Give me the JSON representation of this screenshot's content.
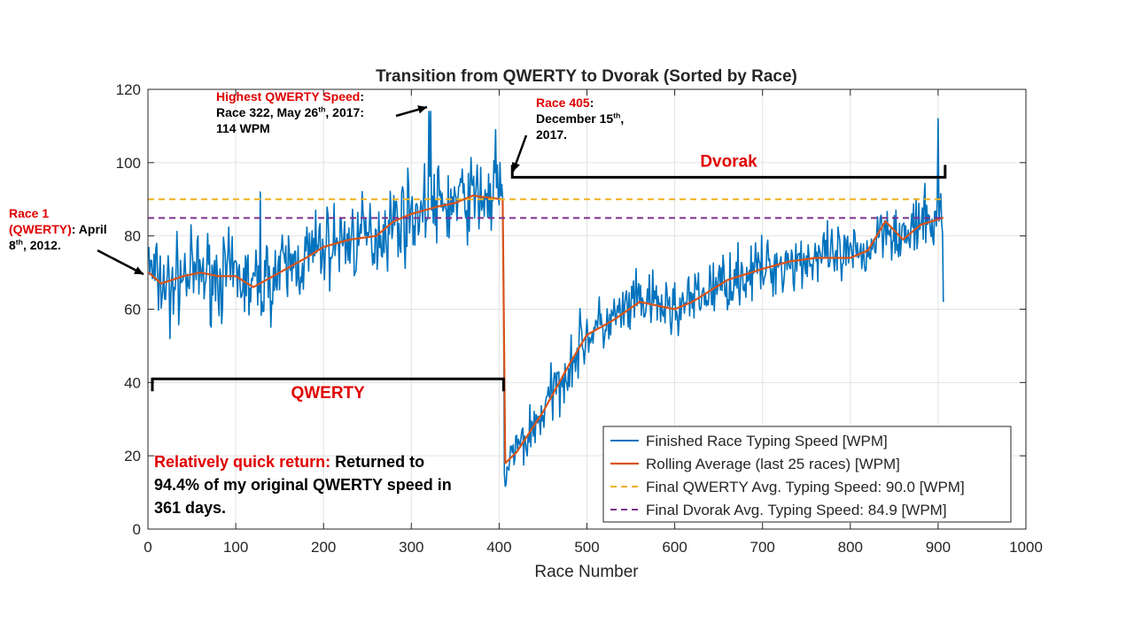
{
  "chart_data": {
    "type": "line",
    "title": "Transition from QWERTY to Dvorak (Sorted by Race)",
    "xlabel": "Race Number",
    "ylabel": "",
    "xlim": [
      0,
      1000
    ],
    "ylim": [
      0,
      120
    ],
    "xticks": [
      0,
      100,
      200,
      300,
      400,
      500,
      600,
      700,
      800,
      900,
      1000
    ],
    "yticks": [
      0,
      20,
      40,
      60,
      80,
      100,
      120
    ],
    "grid": true,
    "legend_position": "bottom-right",
    "colors": {
      "race": "#0072BD",
      "rolling": "#D95319",
      "qwerty_avg": "#EDB120",
      "dvorak_avg": "#7E2F8E",
      "annotation_red": "#E00000"
    },
    "series": [
      {
        "name": "Finished Race Typing Speed [WPM]",
        "style": "solid",
        "note": "Noisy per-race values (approx. +/-12 WPM around the rolling average); notable points listed",
        "points": [
          [
            1,
            77
          ],
          [
            25,
            52
          ],
          [
            128,
            92
          ],
          [
            320,
            114
          ],
          [
            322,
            114
          ],
          [
            396,
            109
          ],
          [
            404,
            90
          ],
          [
            406,
            15
          ],
          [
            409,
            17
          ],
          [
            900,
            112
          ],
          [
            906,
            62
          ]
        ]
      },
      {
        "name": "Rolling Average (last 25 races) [WPM]",
        "style": "solid",
        "x": [
          1,
          15,
          40,
          60,
          80,
          100,
          120,
          150,
          180,
          200,
          230,
          260,
          280,
          300,
          330,
          350,
          370,
          404,
          407,
          420,
          450,
          480,
          500,
          530,
          560,
          580,
          600,
          620,
          660,
          700,
          730,
          760,
          800,
          820,
          840,
          860,
          880,
          906
        ],
        "values": [
          70,
          67,
          69,
          70,
          69,
          69,
          66,
          70,
          74,
          77,
          79,
          80,
          84,
          86,
          88,
          89,
          91,
          90,
          18,
          21,
          32,
          45,
          53,
          57,
          62,
          61,
          60,
          62,
          68,
          71,
          73,
          74,
          74,
          76,
          84,
          79,
          83,
          85
        ]
      },
      {
        "name": "Final QWERTY Avg. Typing Speed: 90.0 [WPM]",
        "style": "dashed",
        "x": [
          0,
          906
        ],
        "values": [
          90.0,
          90.0
        ]
      },
      {
        "name": "Final Dvorak Avg. Typing Speed: 84.9 [WPM]",
        "style": "dashed",
        "x": [
          0,
          906
        ],
        "values": [
          84.9,
          84.9
        ]
      }
    ],
    "brackets": [
      {
        "label": "QWERTY",
        "x_from": 5,
        "x_to": 405,
        "y": 41
      },
      {
        "label": "Dvorak",
        "x_from": 415,
        "x_to": 908,
        "y": 96
      }
    ]
  },
  "annotations": {
    "race1": {
      "title": "Race 1",
      "l2_red": "(QWERTY)",
      "l2_black": ": April",
      "l3_pre": "8",
      "l3_sup": "th",
      "l3_post": ", 2012."
    },
    "highest": {
      "title": "Highest QWERTY Speed",
      "colon": ":",
      "l2_pre": "Race 322, May 26",
      "l2_sup": "th",
      "l2_post": ", 2017:",
      "l3": "114 WPM"
    },
    "race405": {
      "title": "Race 405",
      "colon": ":",
      "l2_pre": "December 15",
      "l2_sup": "th",
      "l2_post": ",",
      "l3": "2017."
    },
    "return": {
      "red": "Relatively quick return:",
      "l1_black": "Returned to",
      "l2": "94.4% of my original QWERTY speed in",
      "l3": "361 days."
    }
  }
}
